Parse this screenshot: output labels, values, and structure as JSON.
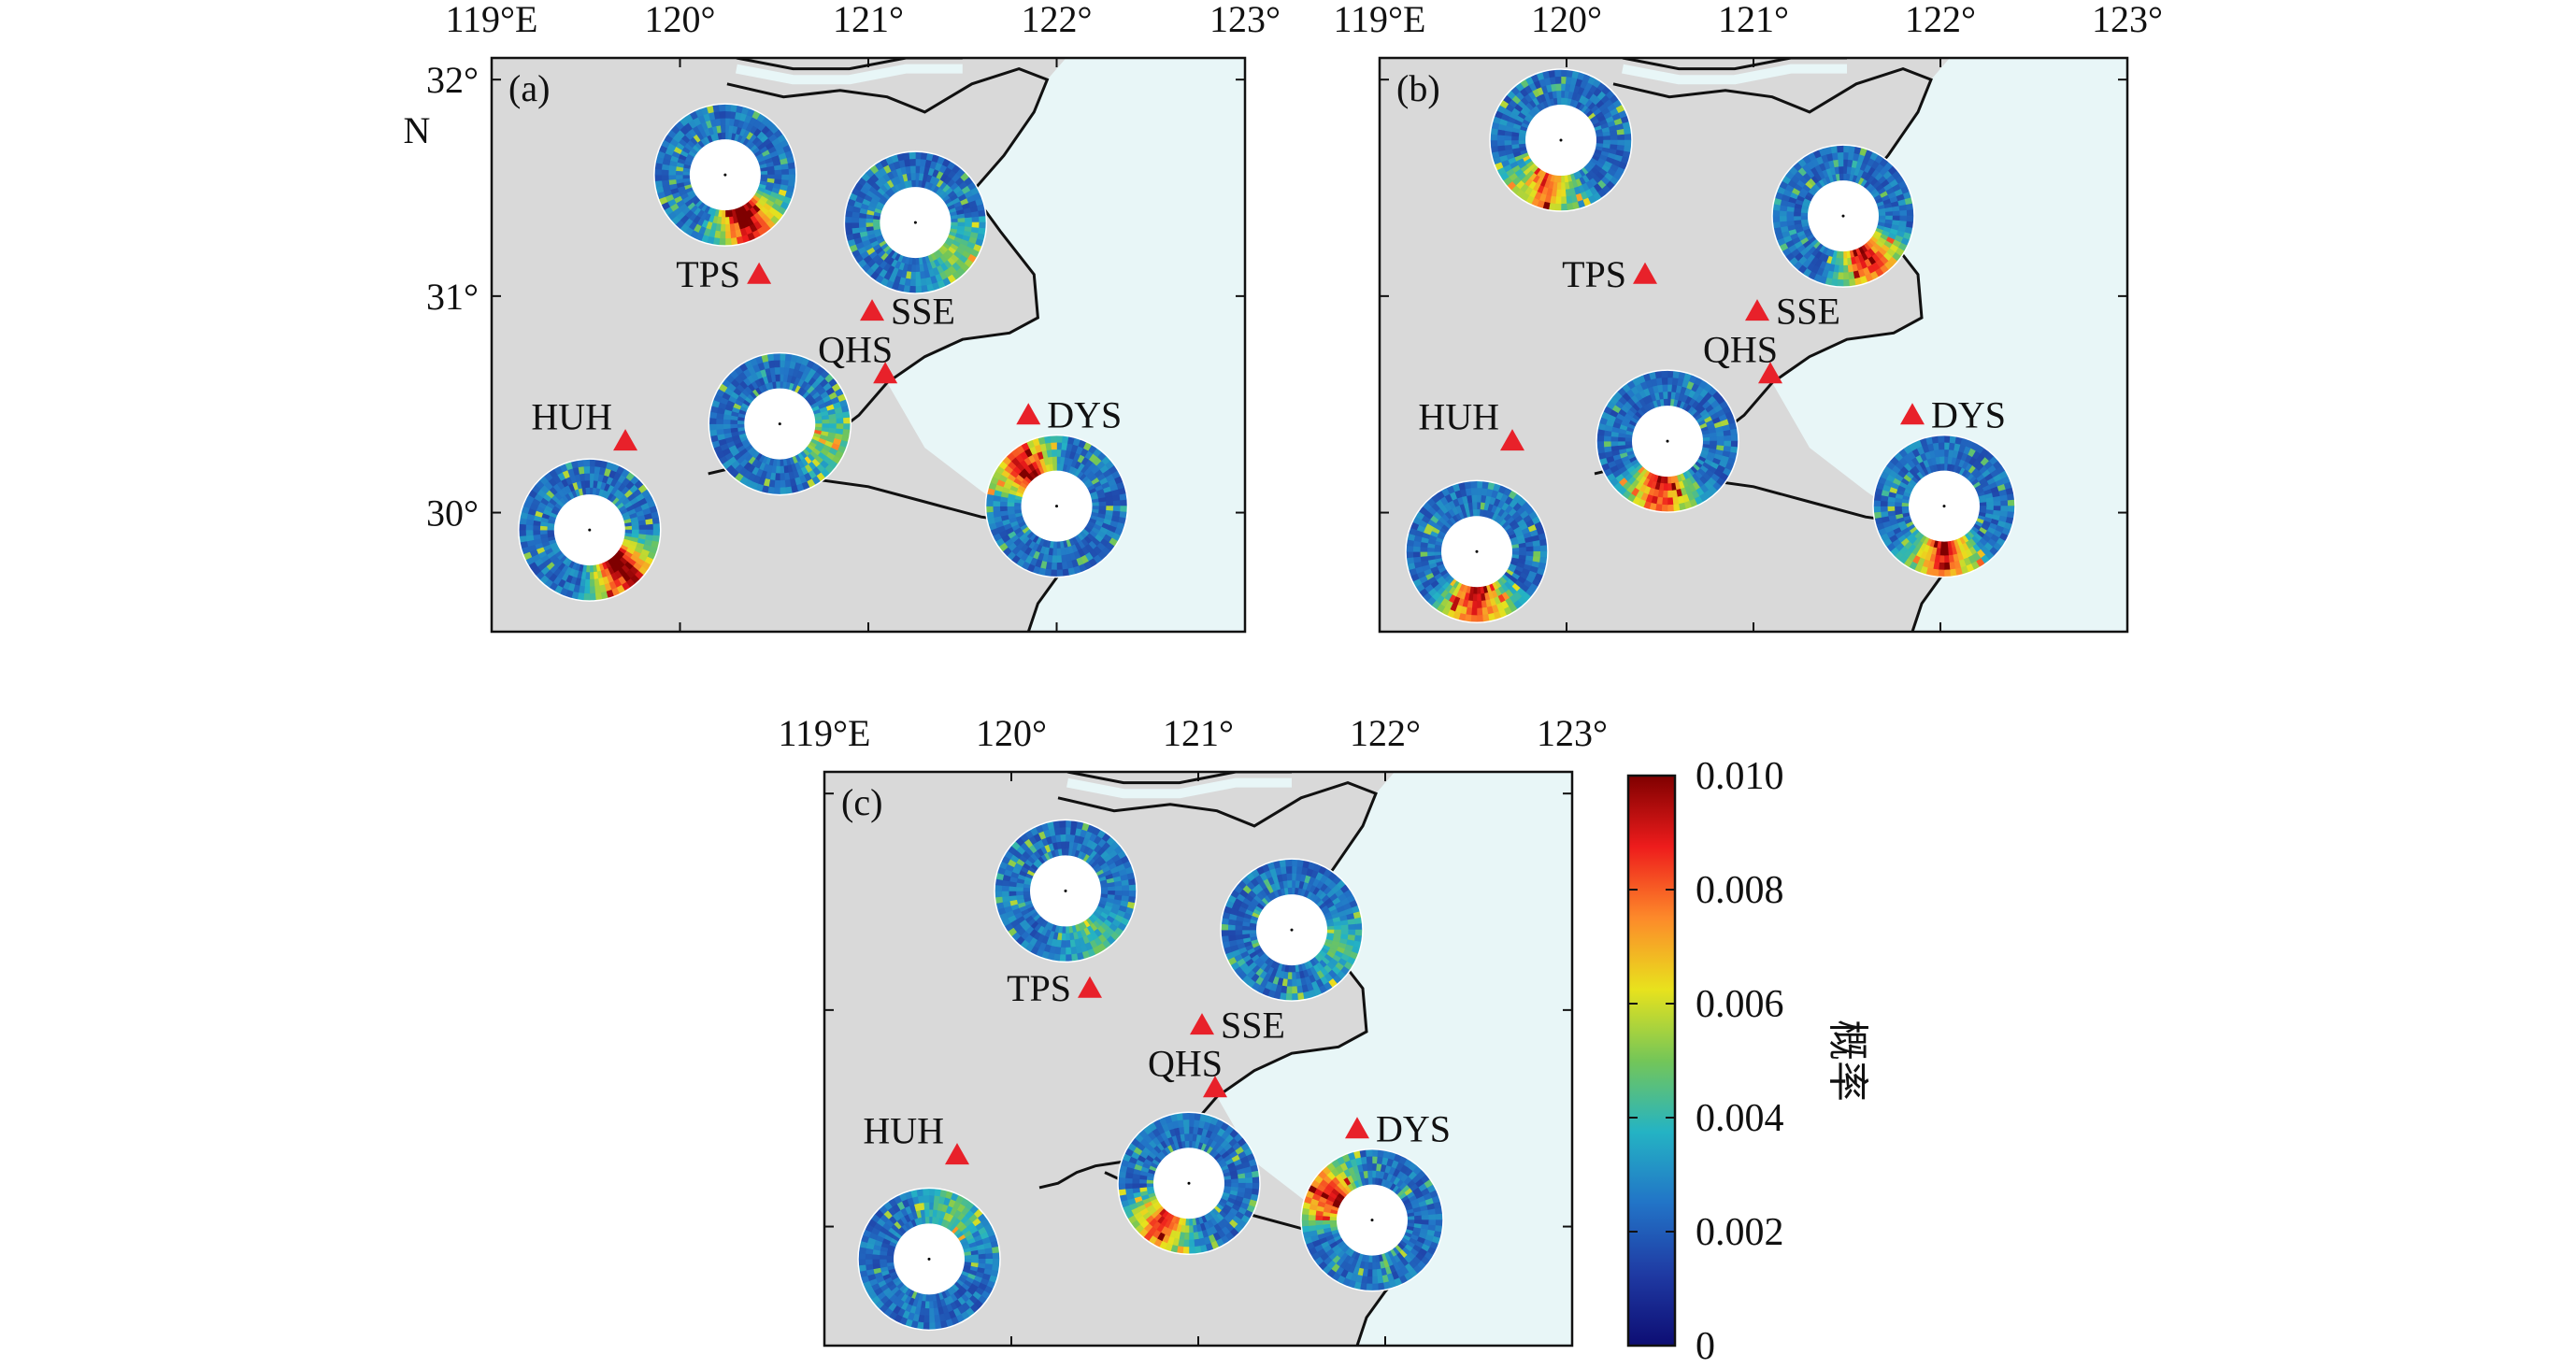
{
  "panels": [
    {
      "id": "a",
      "label": "(a)",
      "lon_ticks": [
        "119°E",
        "120°",
        "121°",
        "122°",
        "123°"
      ],
      "lat_ticks": [
        "32°",
        "31°",
        "30°"
      ],
      "lat_unit": "N",
      "stations": [
        {
          "name": "TPS",
          "lon": 120.42,
          "lat": 31.1
        },
        {
          "name": "SSE",
          "lon": 121.02,
          "lat": 30.93
        },
        {
          "name": "QHS",
          "lon": 121.09,
          "lat": 30.64
        },
        {
          "name": "HUH",
          "lon": 119.71,
          "lat": 30.33
        },
        {
          "name": "DYS",
          "lon": 121.85,
          "lat": 30.45
        }
      ],
      "rings": [
        {
          "station": "TPS",
          "lon": 120.24,
          "lat": 31.56,
          "hot_dir_deg": 155,
          "hot": 0.95
        },
        {
          "station": "SSE",
          "lon": 121.25,
          "lat": 31.34,
          "hot_dir_deg": 130,
          "hot": 0.35
        },
        {
          "station": "QHS",
          "lon": 120.53,
          "lat": 30.41,
          "hot_dir_deg": 110,
          "hot": 0.35
        },
        {
          "station": "HUH",
          "lon": 119.52,
          "lat": 29.92,
          "hot_dir_deg": 140,
          "hot": 0.95
        },
        {
          "station": "DYS",
          "lon": 122.0,
          "lat": 30.03,
          "hot_dir_deg": 320,
          "hot": 0.85
        }
      ]
    },
    {
      "id": "b",
      "label": "(b)",
      "lon_ticks": [
        "119°E",
        "120°",
        "121°",
        "122°",
        "123°"
      ],
      "stations": [
        {
          "name": "TPS",
          "lon": 120.42,
          "lat": 31.1
        },
        {
          "name": "SSE",
          "lon": 121.02,
          "lat": 30.93
        },
        {
          "name": "QHS",
          "lon": 121.09,
          "lat": 30.64
        },
        {
          "name": "HUH",
          "lon": 119.71,
          "lat": 30.33
        },
        {
          "name": "DYS",
          "lon": 121.85,
          "lat": 30.45
        }
      ],
      "rings": [
        {
          "station": "TPS",
          "lon": 119.97,
          "lat": 31.72,
          "hot_dir_deg": 200,
          "hot": 0.7
        },
        {
          "station": "SSE",
          "lon": 121.48,
          "lat": 31.37,
          "hot_dir_deg": 150,
          "hot": 0.8
        },
        {
          "station": "QHS",
          "lon": 120.54,
          "lat": 30.33,
          "hot_dir_deg": 190,
          "hot": 0.8
        },
        {
          "station": "HUH",
          "lon": 119.52,
          "lat": 29.82,
          "hot_dir_deg": 180,
          "hot": 0.85
        },
        {
          "station": "DYS",
          "lon": 122.02,
          "lat": 30.03,
          "hot_dir_deg": 180,
          "hot": 0.85
        }
      ]
    },
    {
      "id": "c",
      "label": "(c)",
      "lon_ticks": [
        "119°E",
        "120°",
        "121°",
        "122°",
        "123°"
      ],
      "stations": [
        {
          "name": "TPS",
          "lon": 120.42,
          "lat": 31.1
        },
        {
          "name": "SSE",
          "lon": 121.02,
          "lat": 30.93
        },
        {
          "name": "QHS",
          "lon": 121.09,
          "lat": 30.64
        },
        {
          "name": "HUH",
          "lon": 119.71,
          "lat": 30.33
        },
        {
          "name": "DYS",
          "lon": 121.85,
          "lat": 30.45
        }
      ],
      "rings": [
        {
          "station": "TPS",
          "lon": 120.29,
          "lat": 31.55,
          "hot_dir_deg": 150,
          "hot": 0.25
        },
        {
          "station": "SSE",
          "lon": 121.5,
          "lat": 31.37,
          "hot_dir_deg": 110,
          "hot": 0.25
        },
        {
          "station": "QHS",
          "lon": 120.95,
          "lat": 30.2,
          "hot_dir_deg": 215,
          "hot": 0.75
        },
        {
          "station": "HUH",
          "lon": 119.56,
          "lat": 29.85,
          "hot_dir_deg": 30,
          "hot": 0.3
        },
        {
          "station": "DYS",
          "lon": 121.93,
          "lat": 30.03,
          "hot_dir_deg": 300,
          "hot": 0.85
        }
      ]
    }
  ],
  "colorbar": {
    "title": "概率",
    "ticks": [
      "0.010",
      "0.008",
      "0.006",
      "0.004",
      "0.002",
      "0"
    ],
    "colors": [
      "#7f0000",
      "#ee1c1c",
      "#fd8a2a",
      "#e8e21d",
      "#74c658",
      "#24b3c4",
      "#2274c7",
      "#1f3aa3",
      "#0d0d73"
    ]
  },
  "colors": {
    "land": "#d9d9d9",
    "sea": "#e8f6f7",
    "station_marker": "#e8212a",
    "coast": "#111111"
  }
}
